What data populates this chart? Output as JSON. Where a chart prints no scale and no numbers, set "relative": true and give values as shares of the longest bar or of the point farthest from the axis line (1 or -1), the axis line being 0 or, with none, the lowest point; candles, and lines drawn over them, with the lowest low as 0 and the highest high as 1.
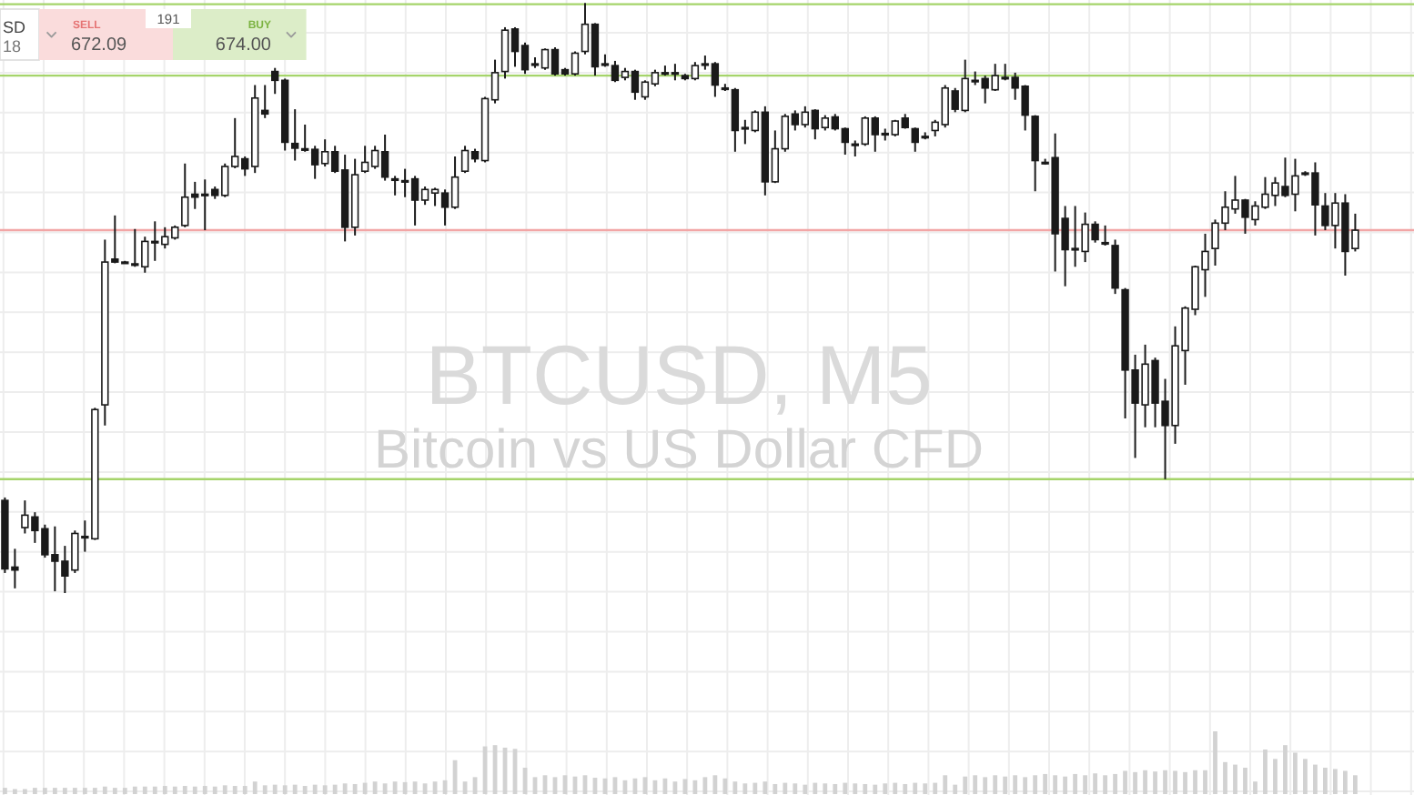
{
  "chart_data": [
    {
      "type": "candlestick",
      "title": "BTCUSD, M5",
      "subtitle": "Bitcoin vs US Dollar CFD",
      "annotations": [
        "SD",
        "18",
        "SELL",
        "672.09",
        "191",
        "BUY",
        "674.00"
      ],
      "relative": true,
      "grid": true,
      "color": "#1a1a1a",
      "categories": [
        null,
        null,
        null,
        null,
        null,
        null,
        null,
        null,
        null,
        null,
        null,
        null,
        null,
        null,
        null,
        null,
        null,
        null,
        null,
        null,
        null,
        null,
        null,
        null,
        null,
        null,
        null,
        null,
        null,
        null,
        null,
        null,
        null,
        null,
        null,
        null,
        null,
        null,
        null,
        null,
        null,
        null,
        null,
        null,
        null,
        null,
        null,
        null,
        null,
        null,
        null,
        null,
        null,
        null,
        null,
        null,
        null,
        null,
        null,
        null,
        null,
        null,
        null,
        null,
        null,
        null,
        null,
        null,
        null,
        null,
        null,
        null,
        null,
        null,
        null,
        null,
        null,
        null,
        null,
        null,
        null,
        null,
        null,
        null,
        null,
        null,
        null,
        null,
        null,
        null,
        null,
        null,
        null,
        null,
        null,
        null,
        null,
        null,
        null,
        null,
        null,
        null,
        null,
        null,
        null,
        null,
        null,
        null,
        null,
        null,
        null,
        null,
        null,
        null,
        null,
        null,
        null,
        null,
        null,
        null,
        null,
        null,
        null,
        null,
        null,
        null,
        null,
        null,
        null,
        null,
        null,
        null,
        null,
        null,
        null,
        null
      ],
      "ohlc": [
        [
          0.157,
          0.162,
          0.034,
          0.041
        ],
        [
          0.044,
          0.075,
          0.008,
          0.039
        ],
        [
          0.111,
          0.157,
          0.101,
          0.132
        ],
        [
          0.129,
          0.137,
          0.085,
          0.106
        ],
        [
          0.109,
          0.116,
          0.06,
          0.065
        ],
        [
          0.065,
          0.113,
          0.003,
          0.054
        ],
        [
          0.054,
          0.08,
          0,
          0.029
        ],
        [
          0.039,
          0.106,
          0.034,
          0.101
        ],
        [
          0.096,
          0.123,
          0.07,
          0.096
        ],
        [
          0.092,
          0.314,
          0.09,
          0.311
        ],
        [
          0.319,
          0.599,
          0.284,
          0.561
        ],
        [
          0.566,
          0.64,
          0.559,
          0.561
        ],
        [
          0.561,
          0.563,
          0.559,
          0.561
        ],
        [
          0.558,
          0.617,
          0.553,
          0.558
        ],
        [
          0.553,
          0.604,
          0.543,
          0.596
        ],
        [
          0.596,
          0.63,
          0.563,
          0.596
        ],
        [
          0.591,
          0.62,
          0.584,
          0.604
        ],
        [
          0.602,
          0.623,
          0.599,
          0.62
        ],
        [
          0.623,
          0.728,
          0.62,
          0.671
        ],
        [
          0.676,
          0.697,
          0.651,
          0.671
        ],
        [
          0.676,
          0.701,
          0.615,
          0.676
        ],
        [
          0.684,
          0.689,
          0.668,
          0.674
        ],
        [
          0.674,
          0.728,
          0.671,
          0.723
        ],
        [
          0.723,
          0.805,
          0.72,
          0.74
        ],
        [
          0.736,
          0.74,
          0.707,
          0.719
        ],
        [
          0.723,
          0.861,
          0.712,
          0.839
        ],
        [
          0.818,
          0.861,
          0.805,
          0.812
        ],
        [
          0.884,
          0.89,
          0.846,
          0.869
        ],
        [
          0.869,
          0.872,
          0.75,
          0.764
        ],
        [
          0.762,
          0.82,
          0.733,
          0.754
        ],
        [
          0.753,
          0.794,
          0.748,
          0.753
        ],
        [
          0.752,
          0.758,
          0.702,
          0.726
        ],
        [
          0.728,
          0.769,
          0.723,
          0.748
        ],
        [
          0.748,
          0.758,
          0.712,
          0.715
        ],
        [
          0.717,
          0.743,
          0.596,
          0.62
        ],
        [
          0.62,
          0.736,
          0.606,
          0.709
        ],
        [
          0.715,
          0.758,
          0.712,
          0.73
        ],
        [
          0.723,
          0.758,
          0.719,
          0.75
        ],
        [
          0.748,
          0.777,
          0.699,
          0.705
        ],
        [
          0.702,
          0.707,
          0.674,
          0.702
        ],
        [
          0.699,
          0.719,
          0.671,
          0.699
        ],
        [
          0.702,
          0.707,
          0.623,
          0.666
        ],
        [
          0.666,
          0.689,
          0.658,
          0.684
        ],
        [
          0.678,
          0.687,
          0.656,
          0.684
        ],
        [
          0.678,
          0.684,
          0.623,
          0.654
        ],
        [
          0.654,
          0.74,
          0.651,
          0.705
        ],
        [
          0.715,
          0.758,
          0.712,
          0.75
        ],
        [
          0.748,
          0.753,
          0.73,
          0.736
        ],
        [
          0.733,
          0.841,
          0.73,
          0.838
        ],
        [
          0.836,
          0.904,
          0.83,
          0.882
        ],
        [
          0.884,
          0.959,
          0.872,
          0.954
        ],
        [
          0.956,
          0.959,
          0.892,
          0.918
        ],
        [
          0.928,
          0.933,
          0.88,
          0.887
        ],
        [
          0.897,
          0.908,
          0.89,
          0.897
        ],
        [
          0.89,
          0.923,
          0.887,
          0.921
        ],
        [
          0.921,
          0.925,
          0.877,
          0.88
        ],
        [
          0.887,
          0.89,
          0.877,
          0.88
        ],
        [
          0.88,
          0.918,
          0.877,
          0.915
        ],
        [
          0.918,
          1,
          0.913,
          0.964
        ],
        [
          0.964,
          0.966,
          0.877,
          0.892
        ],
        [
          0.897,
          0.913,
          0.892,
          0.897
        ],
        [
          0.894,
          0.902,
          0.866,
          0.869
        ],
        [
          0.874,
          0.89,
          0.869,
          0.884
        ],
        [
          0.884,
          0.887,
          0.836,
          0.849
        ],
        [
          0.841,
          0.869,
          0.836,
          0.866
        ],
        [
          0.863,
          0.887,
          0.859,
          0.882
        ],
        [
          0.882,
          0.894,
          0.877,
          0.882
        ],
        [
          0.882,
          0.897,
          0.869,
          0.882
        ],
        [
          0.877,
          0.88,
          0.869,
          0.872
        ],
        [
          0.872,
          0.9,
          0.869,
          0.894
        ],
        [
          0.897,
          0.911,
          0.887,
          0.897
        ],
        [
          0.897,
          0.9,
          0.841,
          0.861
        ],
        [
          0.856,
          0.863,
          0.851,
          0.856
        ],
        [
          0.853,
          0.856,
          0.748,
          0.784
        ],
        [
          0.789,
          0.802,
          0.761,
          0.789
        ],
        [
          0.784,
          0.818,
          0.781,
          0.815
        ],
        [
          0.815,
          0.825,
          0.674,
          0.697
        ],
        [
          0.697,
          0.784,
          0.695,
          0.753
        ],
        [
          0.753,
          0.812,
          0.748,
          0.808
        ],
        [
          0.812,
          0.818,
          0.784,
          0.794
        ],
        [
          0.794,
          0.825,
          0.789,
          0.815
        ],
        [
          0.818,
          0.82,
          0.769,
          0.787
        ],
        [
          0.789,
          0.81,
          0.784,
          0.805
        ],
        [
          0.807,
          0.812,
          0.784,
          0.787
        ],
        [
          0.787,
          0.789,
          0.743,
          0.764
        ],
        [
          0.761,
          0.767,
          0.74,
          0.761
        ],
        [
          0.761,
          0.808,
          0.758,
          0.805
        ],
        [
          0.805,
          0.808,
          0.748,
          0.777
        ],
        [
          0.779,
          0.787,
          0.767,
          0.779
        ],
        [
          0.777,
          0.802,
          0.774,
          0.8
        ],
        [
          0.805,
          0.812,
          0.787,
          0.789
        ],
        [
          0.787,
          0.789,
          0.748,
          0.764
        ],
        [
          0.774,
          0.781,
          0.769,
          0.774
        ],
        [
          0.784,
          0.802,
          0.774,
          0.798
        ],
        [
          0.794,
          0.861,
          0.789,
          0.856
        ],
        [
          0.851,
          0.856,
          0.815,
          0.82
        ],
        [
          0.818,
          0.904,
          0.815,
          0.872
        ],
        [
          0.869,
          0.884,
          0.861,
          0.869
        ],
        [
          0.872,
          0.877,
          0.83,
          0.856
        ],
        [
          0.853,
          0.897,
          0.851,
          0.877
        ],
        [
          0.874,
          0.897,
          0.869,
          0.874
        ],
        [
          0.874,
          0.882,
          0.836,
          0.856
        ],
        [
          0.859,
          0.861,
          0.784,
          0.81
        ],
        [
          0.808,
          0.81,
          0.681,
          0.733
        ],
        [
          0.73,
          0.736,
          0.726,
          0.73
        ],
        [
          0.738,
          0.779,
          0.545,
          0.609
        ],
        [
          0.635,
          0.656,
          0.52,
          0.582
        ],
        [
          0.584,
          0.656,
          0.553,
          0.584
        ],
        [
          0.579,
          0.645,
          0.561,
          0.625
        ],
        [
          0.625,
          0.63,
          0.594,
          0.599
        ],
        [
          0.594,
          0.623,
          0.589,
          0.594
        ],
        [
          0.589,
          0.599,
          0.507,
          0.517
        ],
        [
          0.514,
          0.517,
          0.296,
          0.378
        ],
        [
          0.378,
          0.404,
          0.229,
          0.322
        ],
        [
          0.319,
          0.421,
          0.281,
          0.388
        ],
        [
          0.394,
          0.399,
          0.281,
          0.322
        ],
        [
          0.325,
          0.363,
          0.193,
          0.284
        ],
        [
          0.284,
          0.452,
          0.253,
          0.419
        ],
        [
          0.411,
          0.486,
          0.353,
          0.483
        ],
        [
          0.481,
          0.555,
          0.471,
          0.553
        ],
        [
          0.548,
          0.609,
          0.502,
          0.579
        ],
        [
          0.584,
          0.633,
          0.555,
          0.627
        ],
        [
          0.627,
          0.681,
          0.615,
          0.654
        ],
        [
          0.651,
          0.707,
          0.643,
          0.666
        ],
        [
          0.666,
          0.668,
          0.609,
          0.637
        ],
        [
          0.633,
          0.664,
          0.623,
          0.656
        ],
        [
          0.654,
          0.705,
          0.651,
          0.676
        ],
        [
          0.674,
          0.705,
          0.656,
          0.695
        ],
        [
          0.689,
          0.738,
          0.671,
          0.674
        ],
        [
          0.676,
          0.736,
          0.647,
          0.707
        ],
        [
          0.712,
          0.715,
          0.707,
          0.712
        ],
        [
          0.712,
          0.73,
          0.606,
          0.658
        ],
        [
          0.656,
          0.678,
          0.615,
          0.623
        ],
        [
          0.623,
          0.678,
          0.584,
          0.661
        ],
        [
          0.661,
          0.676,
          0.538,
          0.579
        ],
        [
          0.584,
          0.643,
          0.579,
          0.615
        ]
      ],
      "ref_lines": [
        {
          "axis": "y",
          "value": 0.998,
          "color": "#a5d46a"
        },
        {
          "axis": "y",
          "value": 0.877,
          "color": "#a5d46a"
        },
        {
          "axis": "y",
          "value": 0.615,
          "color": "#f2a6a6"
        },
        {
          "axis": "y",
          "value": 0.193,
          "color": "#a5d46a"
        }
      ]
    },
    {
      "type": "bar",
      "relative": true,
      "grid": true,
      "color": "#d2d2d2",
      "categories": [
        null,
        null,
        null,
        null,
        null,
        null,
        null,
        null,
        null,
        null,
        null,
        null,
        null,
        null,
        null,
        null,
        null,
        null,
        null,
        null,
        null,
        null,
        null,
        null,
        null,
        null,
        null,
        null,
        null,
        null,
        null,
        null,
        null,
        null,
        null,
        null,
        null,
        null,
        null,
        null,
        null,
        null,
        null,
        null,
        null,
        null,
        null,
        null,
        null,
        null,
        null,
        null,
        null,
        null,
        null,
        null,
        null,
        null,
        null,
        null,
        null,
        null,
        null,
        null,
        null,
        null,
        null,
        null,
        null,
        null,
        null,
        null,
        null,
        null,
        null,
        null,
        null,
        null,
        null,
        null,
        null,
        null,
        null,
        null,
        null,
        null,
        null,
        null,
        null,
        null,
        null,
        null,
        null,
        null,
        null,
        null,
        null,
        null,
        null,
        null,
        null,
        null,
        null,
        null,
        null,
        null,
        null,
        null,
        null,
        null,
        null,
        null,
        null,
        null,
        null,
        null,
        null,
        null,
        null,
        null,
        null,
        null,
        null,
        null,
        null,
        null,
        null,
        null,
        null,
        null,
        null,
        null,
        null,
        null,
        null,
        null
      ],
      "values": [
        0.1,
        0.08,
        0.08,
        0.1,
        0.1,
        0.1,
        0.1,
        0.1,
        0.1,
        0.1,
        0.12,
        0.1,
        0.1,
        0.12,
        0.12,
        0.12,
        0.13,
        0.12,
        0.13,
        0.12,
        0.13,
        0.12,
        0.14,
        0.13,
        0.13,
        0.2,
        0.14,
        0.15,
        0.14,
        0.15,
        0.13,
        0.15,
        0.14,
        0.15,
        0.17,
        0.16,
        0.18,
        0.2,
        0.17,
        0.2,
        0.19,
        0.2,
        0.17,
        0.2,
        0.22,
        0.54,
        0.2,
        0.27,
        0.76,
        0.78,
        0.74,
        0.72,
        0.42,
        0.27,
        0.3,
        0.27,
        0.3,
        0.28,
        0.3,
        0.26,
        0.25,
        0.27,
        0.22,
        0.25,
        0.27,
        0.22,
        0.25,
        0.2,
        0.24,
        0.22,
        0.27,
        0.3,
        0.25,
        0.2,
        0.17,
        0.18,
        0.2,
        0.16,
        0.18,
        0.17,
        0.15,
        0.18,
        0.17,
        0.16,
        0.18,
        0.17,
        0.16,
        0.15,
        0.17,
        0.18,
        0.16,
        0.18,
        0.17,
        0.18,
        0.3,
        0.15,
        0.28,
        0.3,
        0.27,
        0.3,
        0.28,
        0.3,
        0.27,
        0.3,
        0.32,
        0.3,
        0.28,
        0.32,
        0.3,
        0.33,
        0.3,
        0.32,
        0.37,
        0.35,
        0.38,
        0.36,
        0.38,
        0.37,
        0.35,
        0.38,
        0.38,
        1,
        0.51,
        0.47,
        0.42,
        0.2,
        0.71,
        0.56,
        0.78,
        0.66,
        0.56,
        0.47,
        0.42,
        0.4,
        0.37,
        0.3
      ]
    }
  ]
}
